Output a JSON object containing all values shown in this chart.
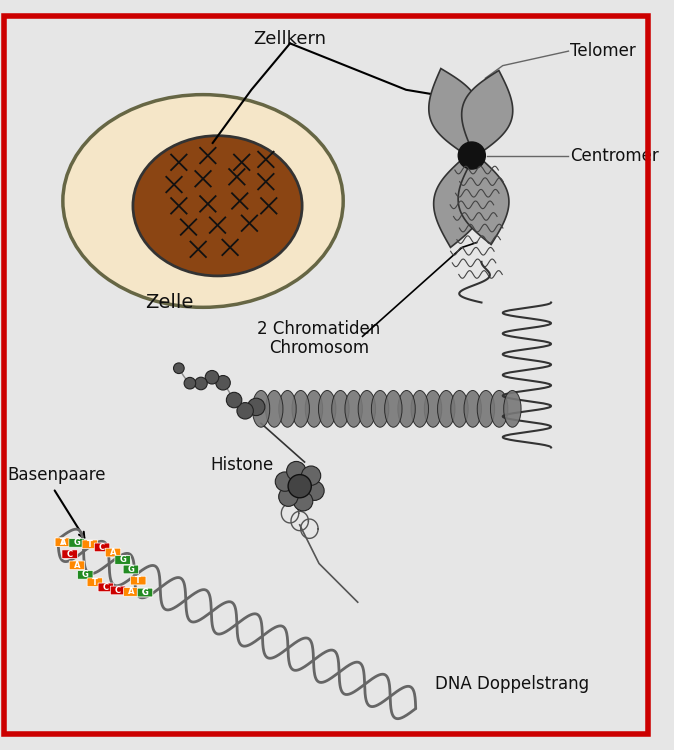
{
  "bg_color": "#e6e6e6",
  "border_color": "#cc0000",
  "labels": {
    "zellkern": "Zellkern",
    "zelle": "Zelle",
    "telomer": "Telomer",
    "centromer": "Centromer",
    "chromatiden": "2 Chromatiden\nChromosom",
    "histone": "Histone",
    "basenpaare": "Basenpaare",
    "dna": "DNA Doppelstrang"
  },
  "cell_color": "#f5e6c8",
  "cell_ec": "#666644",
  "nucleus_color": "#8B4513",
  "nucleus_ec": "#333333",
  "chr_color": "#999999",
  "chr_ec": "#333333",
  "centromere_color": "#111111",
  "bead_color": "#555555",
  "strand_color": "#666666",
  "base_A": "#ff8800",
  "base_T": "#ff8800",
  "base_C": "#cc0000",
  "base_G": "#228B22"
}
